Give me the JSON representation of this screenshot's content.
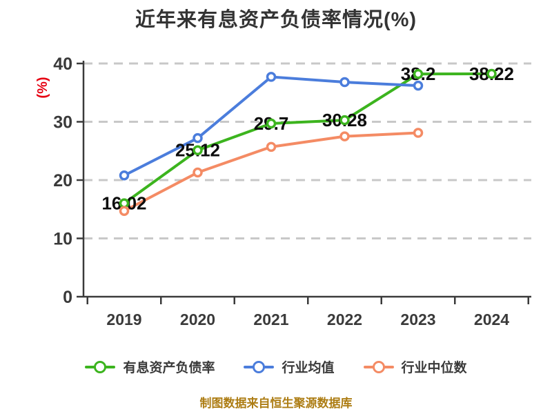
{
  "caption": "制图数据来自恒生聚源数据库",
  "colors": {
    "title": "#333333",
    "axis": "#3a3a3a",
    "grid": "#c8c8c8",
    "y_axis_label": "#e60012",
    "data_label": "#0d0d0d",
    "caption": "#ad7d14"
  },
  "chart_data": {
    "type": "line",
    "title": "近年来有息资产负债率情况(%)",
    "ylabel": "(%)",
    "xlabel": "",
    "x": [
      "2019",
      "2020",
      "2021",
      "2022",
      "2023",
      "2024"
    ],
    "ylim": [
      0,
      40
    ],
    "yticks": [
      0,
      10,
      20,
      30,
      40
    ],
    "grid": "horizontal-dashed",
    "legend_position": "bottom",
    "marker": "circle-white-fill",
    "series": [
      {
        "name": "有息资产负债率",
        "color": "#3cb41e",
        "values": [
          16.02,
          25.12,
          29.7,
          30.28,
          38.2,
          38.22
        ],
        "labels": [
          "16.02",
          "25.12",
          "29.7",
          "30.28",
          "38.2",
          "38.22"
        ]
      },
      {
        "name": "行业均值",
        "color": "#4b7ddc",
        "values": [
          20.8,
          27.2,
          37.7,
          36.8,
          36.2,
          null
        ],
        "labels": []
      },
      {
        "name": "行业中位数",
        "color": "#f48b64",
        "values": [
          14.7,
          21.3,
          25.7,
          27.5,
          28.1,
          null
        ],
        "labels": []
      }
    ]
  }
}
